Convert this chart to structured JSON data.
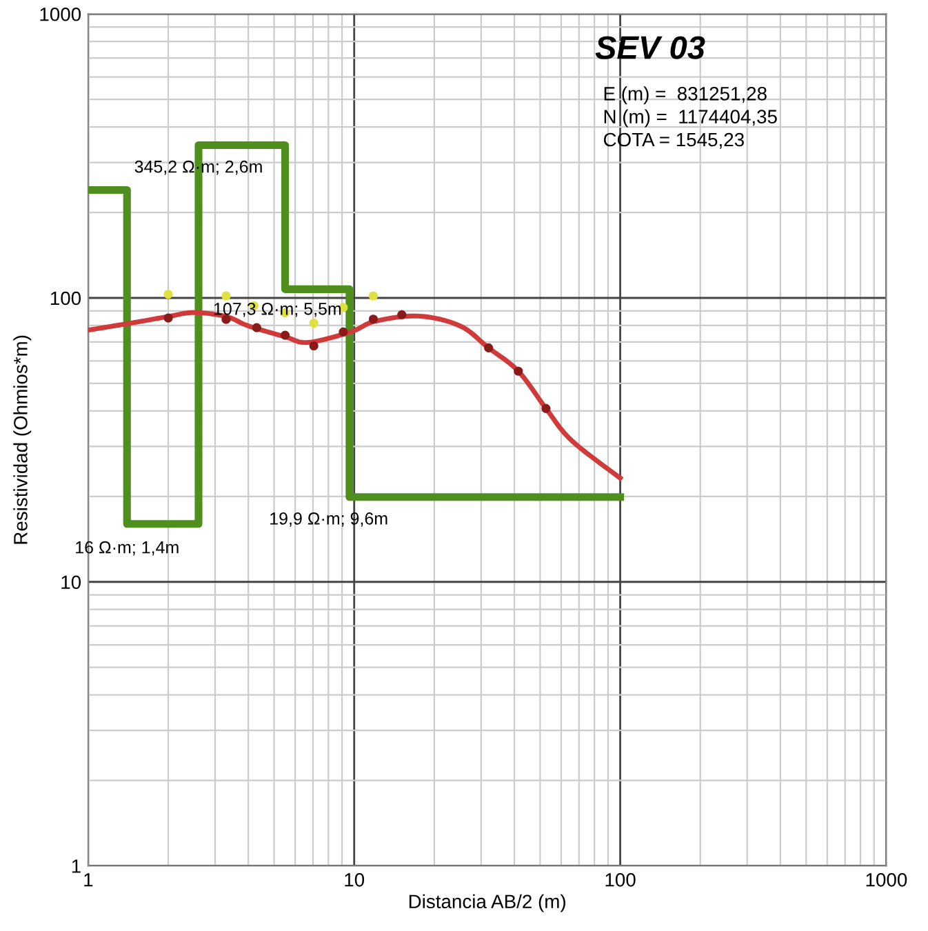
{
  "chart_data": {
    "type": "line",
    "title": "SEV 03",
    "xlabel": "Distancia AB/2 (m)",
    "ylabel": "Resistividad (Ohmios*m)",
    "log": "xy",
    "grid": true,
    "xlim": [
      1,
      1000
    ],
    "ylim": [
      1,
      1000
    ],
    "xticks": [
      1,
      10,
      100,
      1000
    ],
    "yticks": [
      1,
      10,
      100,
      1000
    ],
    "series": [
      {
        "type": "step",
        "color": "#4e8f1e",
        "x": [
          1,
          1.4,
          2.6,
          5.5,
          9.6,
          100
        ],
        "values": [
          240,
          16,
          345.2,
          107.3,
          19.9,
          19.9
        ]
      },
      {
        "color": "#d03a3a",
        "marker": "none",
        "x": [
          1,
          1.5,
          2,
          2.5,
          3.3,
          4,
          5.5,
          6.7,
          9.7,
          12,
          17.5,
          25,
          32,
          41.4,
          52.6,
          65.6,
          100
        ],
        "values": [
          77,
          82,
          86,
          88.8,
          86,
          79.7,
          73,
          69.7,
          75.9,
          82.8,
          86.3,
          79.7,
          66.7,
          55.2,
          40.8,
          31.5,
          23.2
        ]
      },
      {
        "type": "scatter",
        "color": "#8b1a1a",
        "marker": "circle",
        "x": [
          2,
          3.3,
          4.3,
          5.5,
          7.05,
          9.1,
          11.8,
          15.1,
          32,
          41.4,
          52.6
        ],
        "values": [
          85,
          84,
          78.6,
          73.9,
          67.8,
          75.9,
          84.2,
          87.3,
          66.7,
          55.2,
          40.8
        ]
      },
      {
        "type": "scatter",
        "color": "#e0e040",
        "marker": "circle",
        "x": [
          2,
          3.3,
          4.2,
          5.5,
          7.05,
          9.1,
          11.8
        ],
        "values": [
          103,
          101.7,
          93.9,
          88.6,
          81.5,
          92.5,
          101.7
        ]
      }
    ],
    "annotations": [
      {
        "text": "345,2 Ω·m; 2,6m",
        "x": 2.6,
        "y": 345.2
      },
      {
        "text": "16 Ω·m; 1,4m",
        "x": 1.4,
        "y": 16
      },
      {
        "text": "107,3 Ω·m; 5,5m",
        "x": 9.6,
        "y": 107.3
      },
      {
        "text": "19,9 Ω·m; 9,6m",
        "x": 9.6,
        "y": 19.9
      },
      "E (m) =  831251,28",
      "N (m) =  1174404,35",
      "COTA = 1545,23"
    ]
  }
}
